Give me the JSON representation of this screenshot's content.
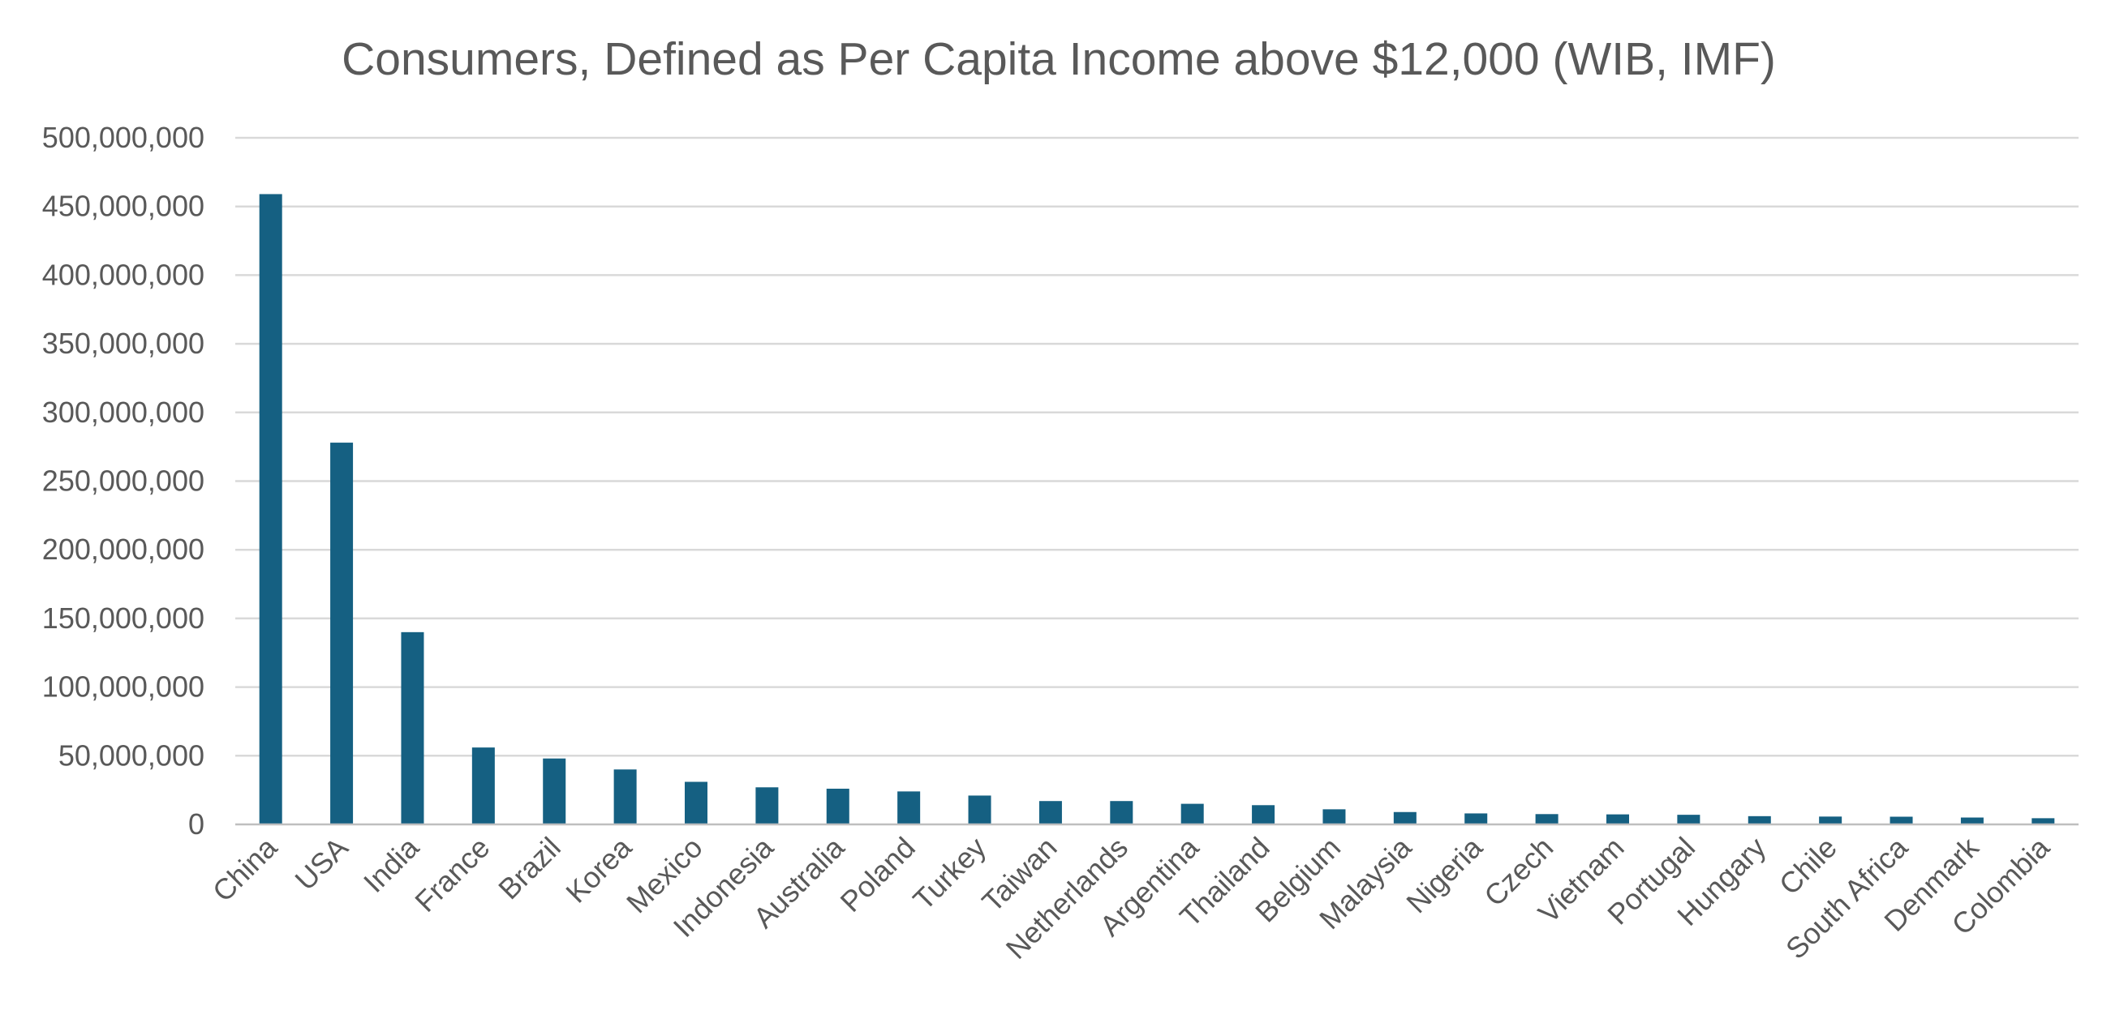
{
  "chart_data": {
    "type": "bar",
    "title": "Consumers, Defined as Per Capita Income above $12,000 (WIB, IMF)",
    "xlabel": "",
    "ylabel": "",
    "ylim": [
      0,
      500000000
    ],
    "yticks": [
      "0",
      "50,000,000",
      "100,000,000",
      "150,000,000",
      "200,000,000",
      "250,000,000",
      "300,000,000",
      "350,000,000",
      "400,000,000",
      "450,000,000",
      "500,000,000"
    ],
    "grid": true,
    "legend": "none",
    "bar_color": "#156082",
    "categories": [
      "China",
      "USA",
      "India",
      "France",
      "Brazil",
      "Korea",
      "Mexico",
      "Indonesia",
      "Australia",
      "Poland",
      "Turkey",
      "Taiwan",
      "Netherlands",
      "Argentina",
      "Thailand",
      "Belgium",
      "Malaysia",
      "Nigeria",
      "Czech",
      "Vietnam",
      "Portugal",
      "Hungary",
      "Chile",
      "South Africa",
      "Denmark",
      "Colombia"
    ],
    "values": [
      459000000,
      278000000,
      140000000,
      56000000,
      48000000,
      40000000,
      31000000,
      27000000,
      26000000,
      24000000,
      21000000,
      17000000,
      17000000,
      15000000,
      14000000,
      11000000,
      9000000,
      8000000,
      7500000,
      7300000,
      7000000,
      6000000,
      5700000,
      5600000,
      5000000,
      4500000
    ]
  }
}
